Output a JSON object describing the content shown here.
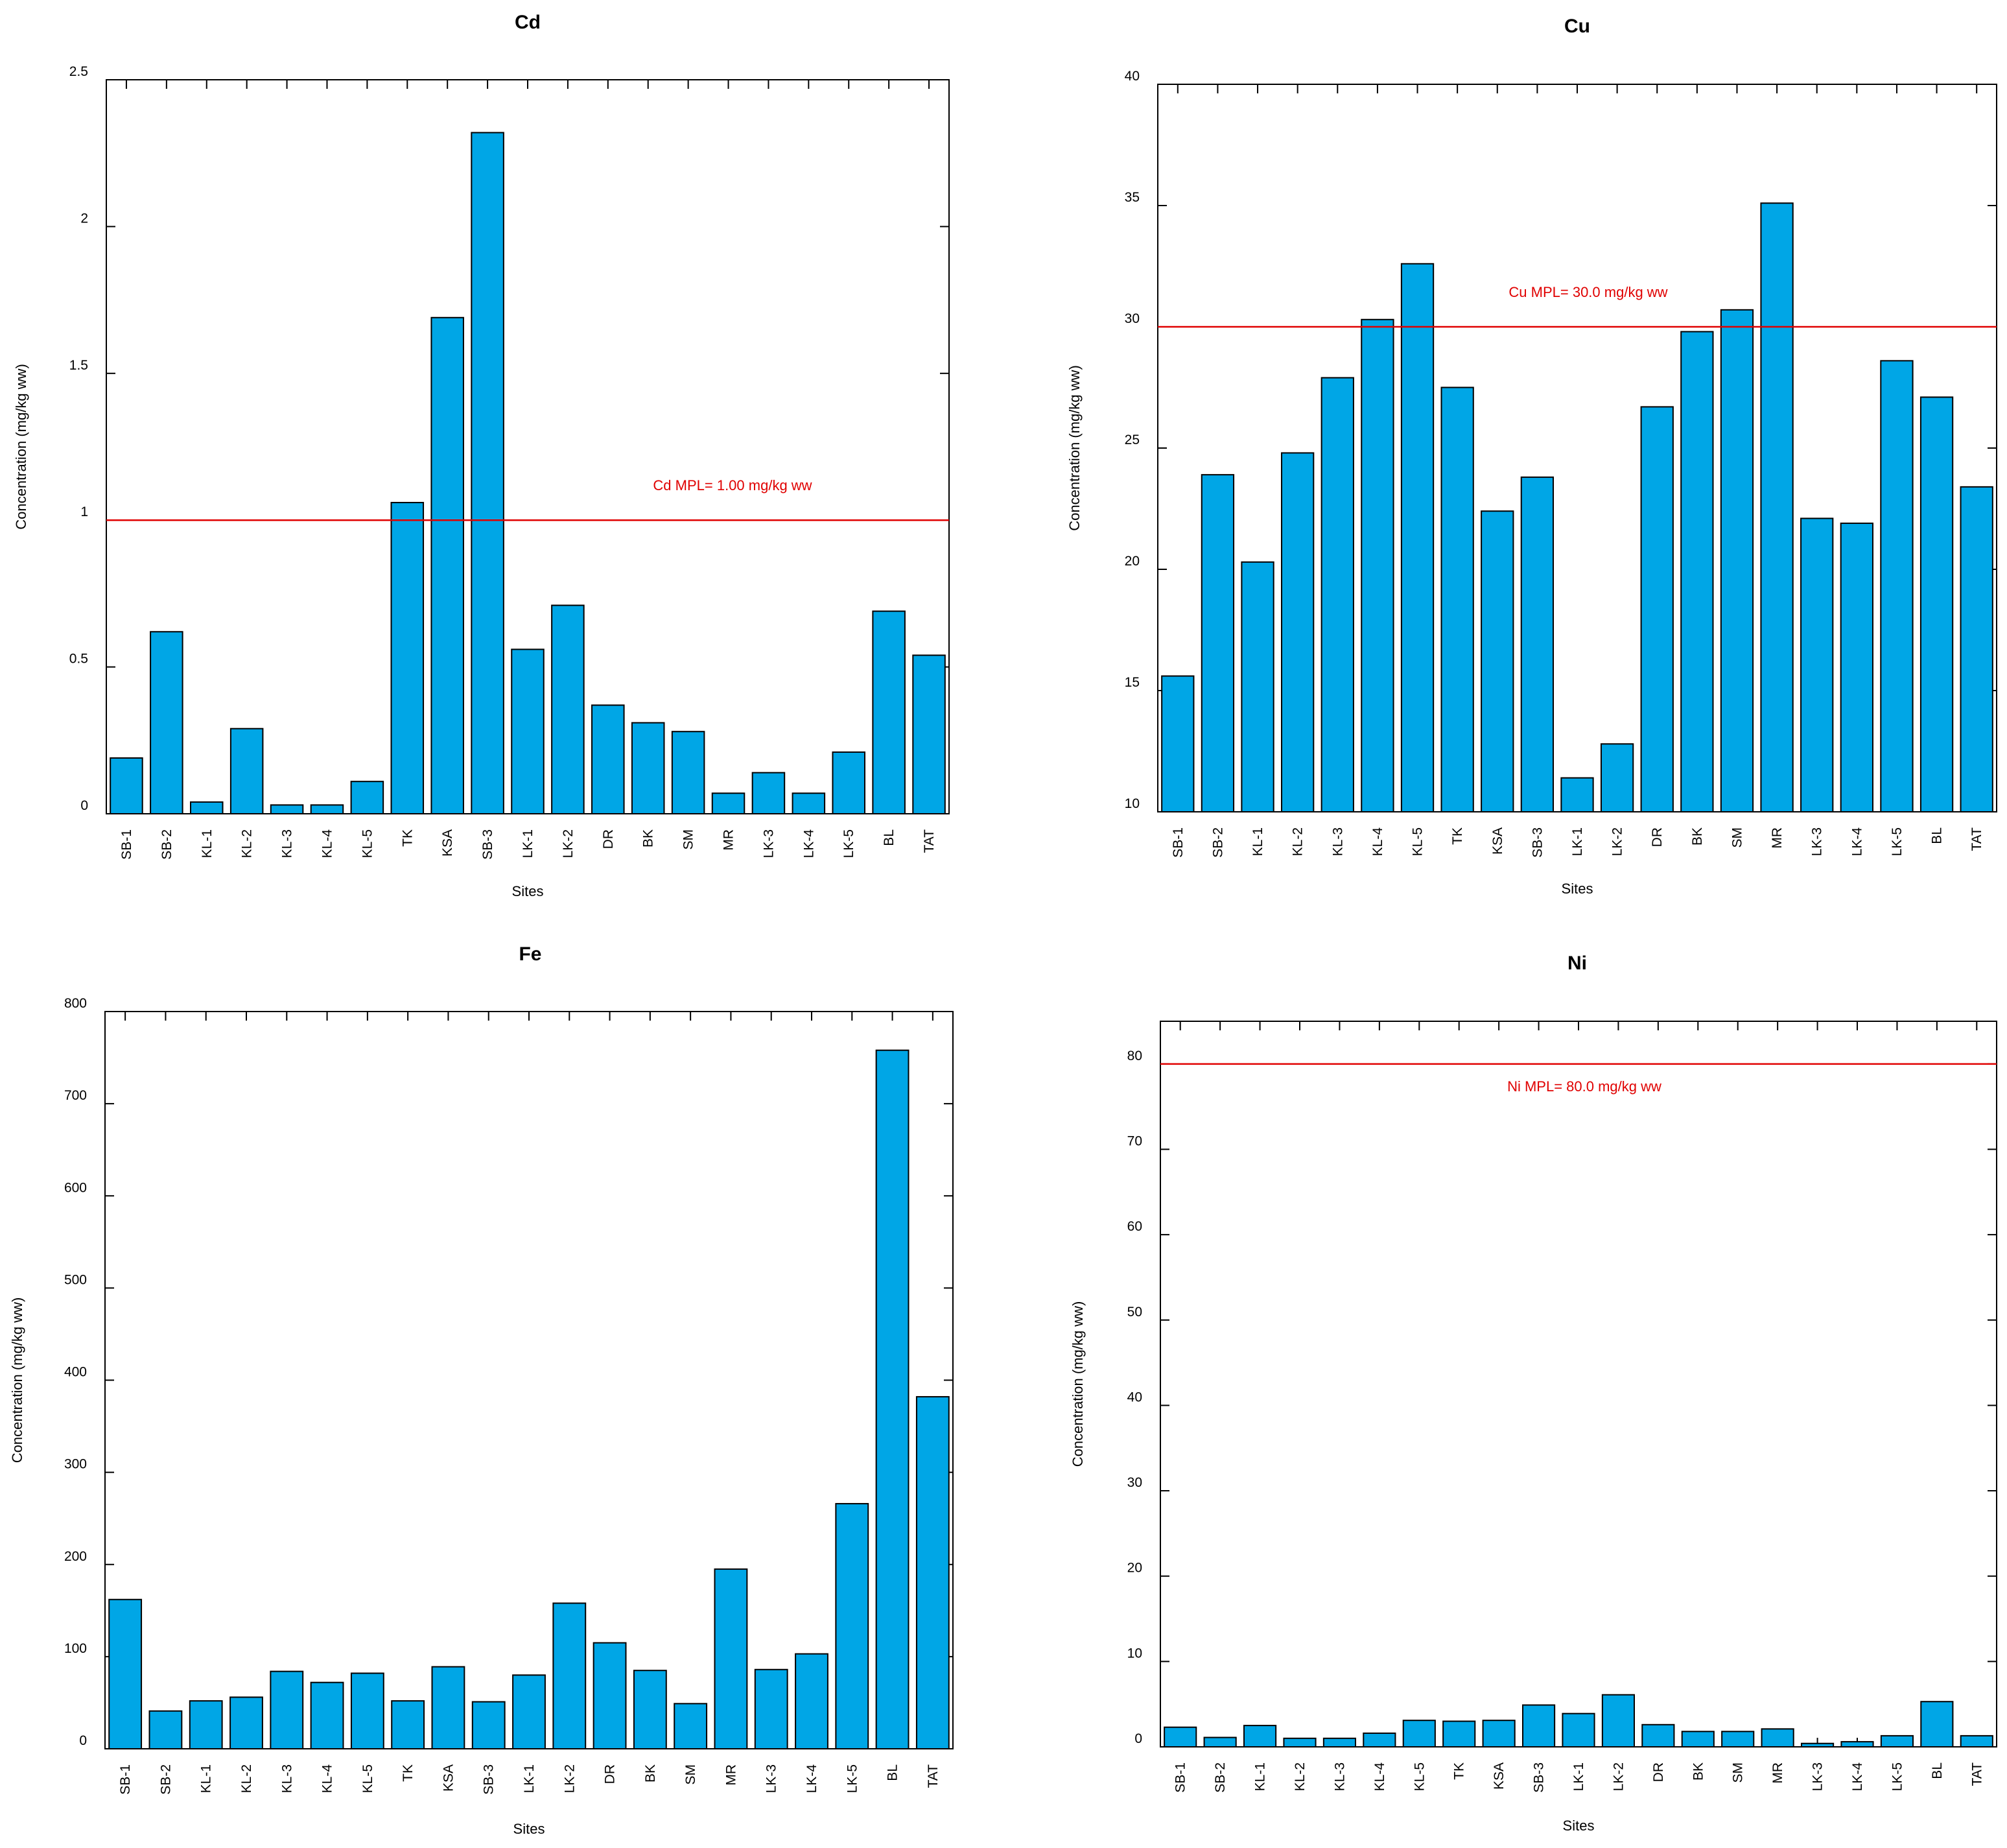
{
  "colors": {
    "bar_fill": "#00a6e6",
    "bar_stroke": "#000000",
    "mpl_line": "#e00000",
    "mpl_text": "#e00000"
  },
  "chart_data": [
    {
      "type": "bar",
      "title": "Cd",
      "xlabel": "Sites",
      "ylabel": "Concentration (mg/kg ww)",
      "ylim": [
        0,
        2.5
      ],
      "yticks": [
        "0",
        "0.5",
        "1",
        "1.5",
        "2",
        "2.5"
      ],
      "categories": [
        "SB-1",
        "SB-2",
        "KL-1",
        "KL-2",
        "KL-3",
        "KL-4",
        "KL-5",
        "TK",
        "KSA",
        "SB-3",
        "LK-1",
        "LK-2",
        "DR",
        "BK",
        "SM",
        "MR",
        "LK-3",
        "LK-4",
        "LK-5",
        "BL",
        "TAT"
      ],
      "values": [
        0.19,
        0.62,
        0.04,
        0.29,
        0.03,
        0.03,
        0.11,
        1.06,
        1.69,
        2.32,
        0.56,
        0.71,
        0.37,
        0.31,
        0.28,
        0.07,
        0.14,
        0.07,
        0.21,
        0.69,
        0.54
      ],
      "mpl": {
        "value": 1.0,
        "label": "Cd MPL= 1.00 mg/kg ww"
      }
    },
    {
      "type": "bar",
      "title": "Cu",
      "xlabel": "Sites",
      "ylabel": "Concentration (mg/kg ww)",
      "ylim": [
        10,
        40
      ],
      "yticks": [
        "10",
        "15",
        "20",
        "25",
        "30",
        "35",
        "40"
      ],
      "categories": [
        "SB-1",
        "SB-2",
        "KL-1",
        "KL-2",
        "KL-3",
        "KL-4",
        "KL-5",
        "TK",
        "KSA",
        "SB-3",
        "LK-1",
        "LK-2",
        "DR",
        "BK",
        "SM",
        "MR",
        "LK-3",
        "LK-4",
        "LK-5",
        "BL",
        "TAT"
      ],
      "values": [
        15.6,
        23.9,
        20.3,
        24.8,
        27.9,
        30.3,
        32.6,
        27.5,
        22.4,
        23.8,
        11.4,
        12.8,
        26.7,
        29.8,
        30.7,
        35.1,
        22.1,
        21.9,
        28.6,
        27.1,
        23.4
      ],
      "mpl": {
        "value": 30.0,
        "label": "Cu MPL= 30.0 mg/kg ww"
      }
    },
    {
      "type": "bar",
      "title": "Fe",
      "xlabel": "Sites",
      "ylabel": "Concentration (mg/kg ww)",
      "ylim": [
        0,
        800
      ],
      "yticks": [
        "0",
        "100",
        "200",
        "300",
        "400",
        "500",
        "600",
        "700",
        "800"
      ],
      "categories": [
        "SB-1",
        "SB-2",
        "KL-1",
        "KL-2",
        "KL-3",
        "KL-4",
        "KL-5",
        "TK",
        "KSA",
        "SB-3",
        "LK-1",
        "LK-2",
        "DR",
        "BK",
        "SM",
        "MR",
        "LK-3",
        "LK-4",
        "LK-5",
        "BL",
        "TAT"
      ],
      "values": [
        162,
        41,
        52,
        56,
        84,
        72,
        82,
        52,
        89,
        51,
        80,
        158,
        115,
        85,
        49,
        195,
        86,
        103,
        266,
        758,
        382
      ],
      "mpl": null
    },
    {
      "type": "bar",
      "title": "Ni",
      "xlabel": "Sites",
      "ylabel": "Concentration (mg/kg ww)",
      "ylim": [
        0,
        85
      ],
      "yticks": [
        "0",
        "10",
        "20",
        "30",
        "40",
        "50",
        "60",
        "70",
        "80"
      ],
      "categories": [
        "SB-1",
        "SB-2",
        "KL-1",
        "KL-2",
        "KL-3",
        "KL-4",
        "KL-5",
        "TK",
        "KSA",
        "SB-3",
        "LK-1",
        "LK-2",
        "DR",
        "BK",
        "SM",
        "MR",
        "LK-3",
        "LK-4",
        "LK-5",
        "BL",
        "TAT"
      ],
      "values": [
        2.3,
        1.1,
        2.5,
        1.0,
        1.0,
        1.6,
        3.1,
        3.0,
        3.1,
        4.9,
        3.9,
        6.1,
        2.6,
        1.8,
        1.8,
        2.1,
        0.4,
        0.6,
        1.3,
        5.3,
        1.3
      ],
      "mpl": {
        "value": 80.0,
        "label": "Ni MPL= 80.0 mg/kg ww"
      }
    }
  ]
}
